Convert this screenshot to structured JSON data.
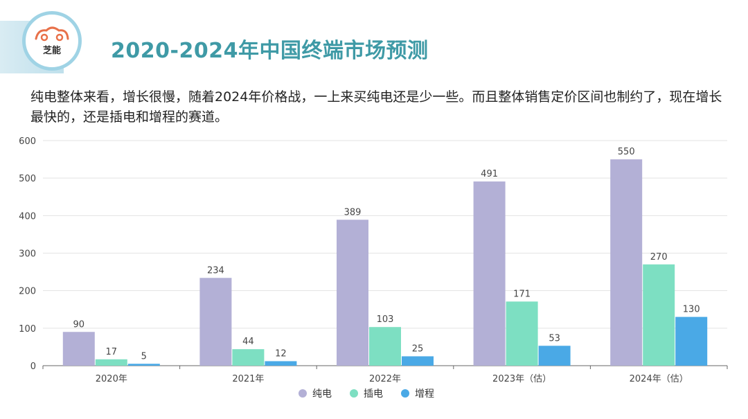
{
  "header": {
    "logo_text": "芝能",
    "title": "2020-2024年中国终端市场预测"
  },
  "description": "纯电整体来看，增长很慢，随着2024年价格战，一上来买纯电还是少一些。而且整体销售定价区间也制约了，现在增长最快的，还是插电和增程的赛道。",
  "colors": {
    "title": "#3f9aa6",
    "bev": "#b3b0d6",
    "phev": "#7ddfc2",
    "erev": "#4aa9e6",
    "grid": "#e3e3e3"
  },
  "chart_data": {
    "type": "bar",
    "categories": [
      "2020年",
      "2021年",
      "2022年",
      "2023年（估）",
      "2024年（估）"
    ],
    "series": [
      {
        "name": "纯电",
        "color": "#b3b0d6",
        "values": [
          90,
          234,
          389,
          491,
          550
        ]
      },
      {
        "name": "插电",
        "color": "#7ddfc2",
        "values": [
          17,
          44,
          103,
          171,
          270
        ]
      },
      {
        "name": "增程",
        "color": "#4aa9e6",
        "values": [
          5,
          12,
          25,
          53,
          130
        ]
      }
    ],
    "yticks": [
      0,
      100,
      200,
      300,
      400,
      500,
      600
    ],
    "ylim": [
      0,
      600
    ],
    "grid": true,
    "legend_position": "bottom-center",
    "data_labels": true
  }
}
